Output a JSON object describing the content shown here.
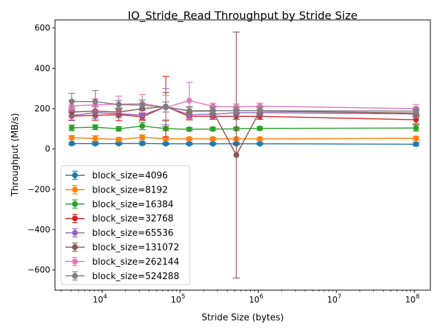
{
  "chart_data": {
    "type": "line",
    "title": "IO_Stride_Read Throughput by Stride Size",
    "xlabel": "Stride Size (bytes)",
    "ylabel": "Throughput (MB/s)",
    "xscale": "log",
    "xlim": [
      2500,
      160000000
    ],
    "ylim": [
      -700,
      640
    ],
    "yticks": [
      -600,
      -400,
      -200,
      0,
      200,
      400,
      600
    ],
    "ytick_labels": [
      "−600",
      "−400",
      "−200",
      "0",
      "200",
      "400",
      "600"
    ],
    "xticks": [
      10000,
      100000,
      1000000,
      10000000,
      100000000
    ],
    "xtick_bases": [
      "10",
      "10",
      "10",
      "10",
      "10"
    ],
    "xtick_exps": [
      "4",
      "5",
      "6",
      "7",
      "8"
    ],
    "grid": false,
    "legend_position": "lower-left",
    "x": [
      4096,
      8192,
      16384,
      32768,
      65536,
      131072,
      262144,
      524288,
      1048576,
      104857600
    ],
    "series": [
      {
        "name": "block_size=4096",
        "color": "#1f77b4",
        "values": [
          27,
          27,
          27,
          28,
          26,
          26,
          26,
          26,
          26,
          24
        ],
        "errors": [
          6,
          6,
          5,
          8,
          5,
          5,
          4,
          5,
          4,
          8
        ]
      },
      {
        "name": "block_size=8192",
        "color": "#ff7f0e",
        "values": [
          56,
          52,
          47,
          58,
          51,
          50,
          50,
          50,
          50,
          53
        ],
        "errors": [
          10,
          14,
          10,
          12,
          9,
          8,
          8,
          8,
          7,
          10
        ]
      },
      {
        "name": "block_size=16384",
        "color": "#2ca02c",
        "values": [
          105,
          108,
          100,
          114,
          101,
          98,
          99,
          100,
          102,
          104
        ],
        "errors": [
          14,
          12,
          10,
          18,
          10,
          8,
          8,
          8,
          8,
          15
        ]
      },
      {
        "name": "block_size=32768",
        "color": "#d62728",
        "values": [
          163,
          167,
          170,
          160,
          210,
          162,
          162,
          162,
          162,
          145
        ],
        "errors": [
          20,
          25,
          30,
          18,
          150,
          18,
          15,
          15,
          15,
          20
        ]
      },
      {
        "name": "block_size=65536",
        "color": "#9467bd",
        "values": [
          166,
          180,
          175,
          168,
          210,
          170,
          172,
          180,
          180,
          174
        ],
        "errors": [
          25,
          30,
          20,
          22,
          90,
          20,
          18,
          18,
          18,
          20
        ]
      },
      {
        "name": "block_size=131072",
        "color": "#8c564b",
        "values": [
          183,
          188,
          183,
          200,
          210,
          188,
          188,
          -30,
          188,
          178
        ],
        "errors": [
          20,
          22,
          20,
          25,
          70,
          20,
          18,
          610,
          18,
          18
        ]
      },
      {
        "name": "block_size=262144",
        "color": "#e377c2",
        "values": [
          213,
          219,
          222,
          225,
          206,
          240,
          212,
          208,
          212,
          200
        ],
        "errors": [
          25,
          30,
          40,
          45,
          60,
          90,
          15,
          15,
          15,
          20
        ]
      },
      {
        "name": "block_size=524288",
        "color": "#7f7f7f",
        "values": [
          236,
          235,
          220,
          218,
          208,
          190,
          190,
          190,
          190,
          188
        ],
        "errors": [
          40,
          55,
          20,
          25,
          25,
          20,
          18,
          18,
          18,
          18
        ]
      }
    ]
  }
}
